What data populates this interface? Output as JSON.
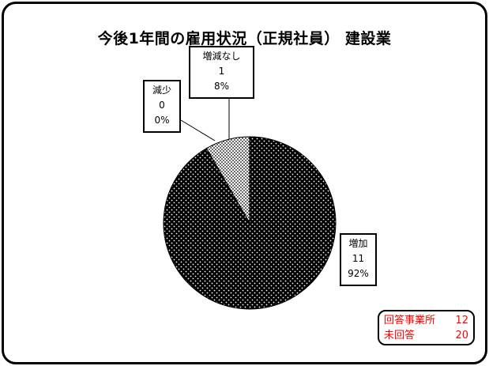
{
  "chart_data": {
    "type": "pie",
    "title": "今後1年間の雇用状況（正規社員） 建設業",
    "slices": [
      {
        "name": "増加",
        "value": 11,
        "percent": "92%"
      },
      {
        "name": "増減なし",
        "value": 1,
        "percent": "8%"
      },
      {
        "name": "減少",
        "value": 0,
        "percent": "0%"
      }
    ]
  },
  "labels": {
    "increase": {
      "name": "増加",
      "count": "11",
      "percent": "92%"
    },
    "no_change": {
      "name": "増減なし",
      "count": "1",
      "percent": "8%"
    },
    "decrease": {
      "name": "減少",
      "count": "0",
      "percent": "0%"
    }
  },
  "summary": {
    "respondents_label": "回答事業所",
    "respondents_value": "12",
    "no_answer_label": "未回答",
    "no_answer_value": "20",
    "color": "#ff0000"
  }
}
